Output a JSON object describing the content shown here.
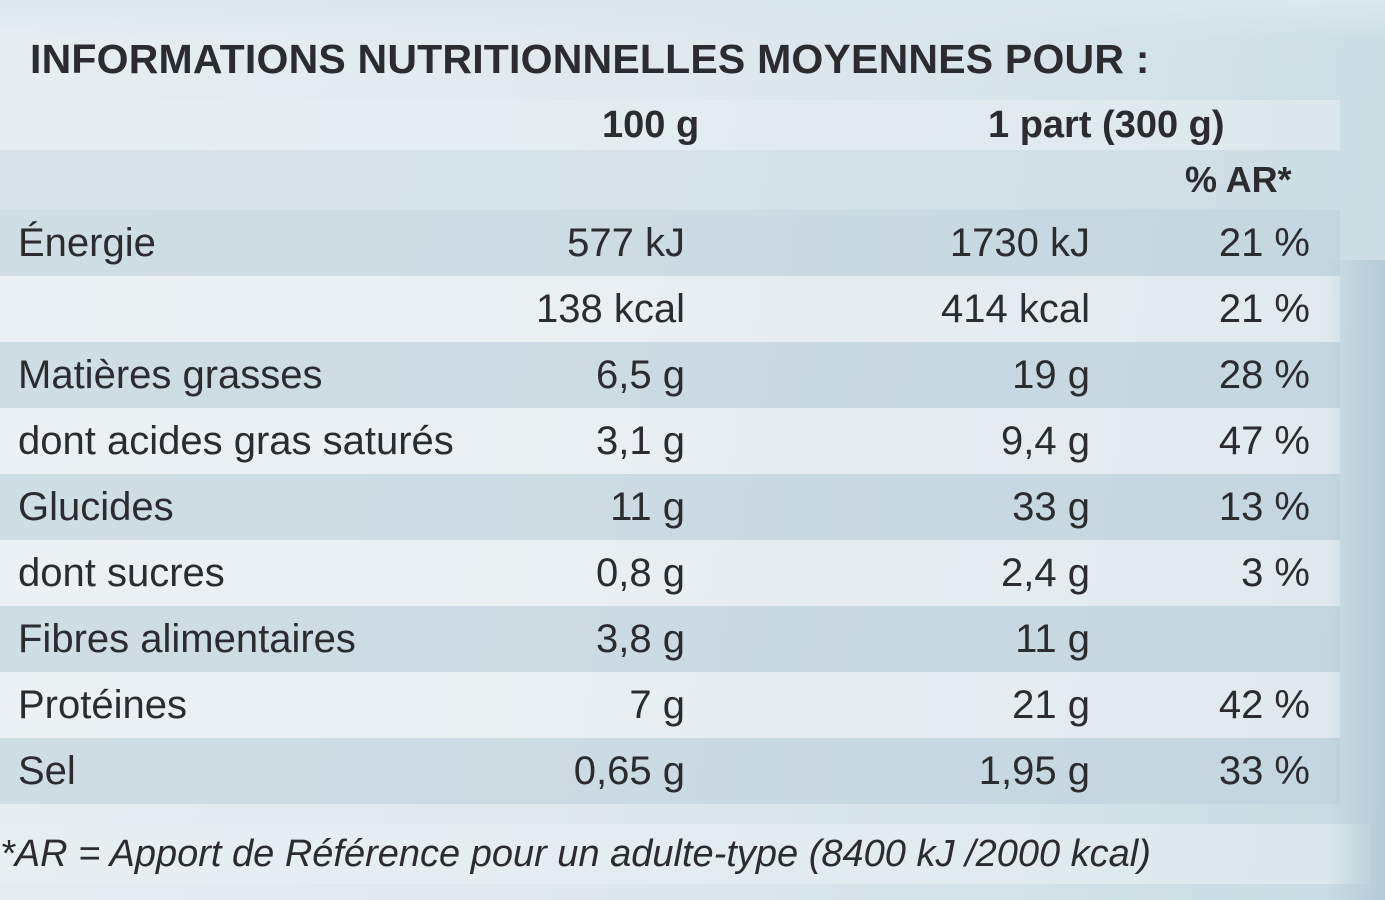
{
  "title": "INFORMATIONS NUTRITIONNELLES MOYENNES POUR :",
  "columns": {
    "per_100": "100 g",
    "per_portion": "1 part (300 g)",
    "ar": "% AR*"
  },
  "rows": [
    {
      "name": "Énergie",
      "per_100": "577 kJ",
      "per_portion": "1730 kJ",
      "ar": "21 %"
    },
    {
      "name": "",
      "per_100": "138 kcal",
      "per_portion": "414 kcal",
      "ar": "21 %"
    },
    {
      "name": "Matières grasses",
      "per_100": "6,5 g",
      "per_portion": "19 g",
      "ar": "28 %"
    },
    {
      "name": "dont acides gras saturés",
      "per_100": "3,1 g",
      "per_portion": "9,4 g",
      "ar": "47 %"
    },
    {
      "name": "Glucides",
      "per_100": "11 g",
      "per_portion": "33 g",
      "ar": "13 %"
    },
    {
      "name": "dont sucres",
      "per_100": "0,8 g",
      "per_portion": "2,4 g",
      "ar": "3 %"
    },
    {
      "name": "Fibres alimentaires",
      "per_100": "3,8 g",
      "per_portion": "11 g",
      "ar": ""
    },
    {
      "name": "Protéines",
      "per_100": "7 g",
      "per_portion": "21 g",
      "ar": "42 %"
    },
    {
      "name": "Sel",
      "per_100": "0,65 g",
      "per_portion": "1,95 g",
      "ar": "33 %"
    }
  ],
  "footnote": "*AR = Apport de Référence pour un adulte-type (8400 kJ /2000 kcal)"
}
